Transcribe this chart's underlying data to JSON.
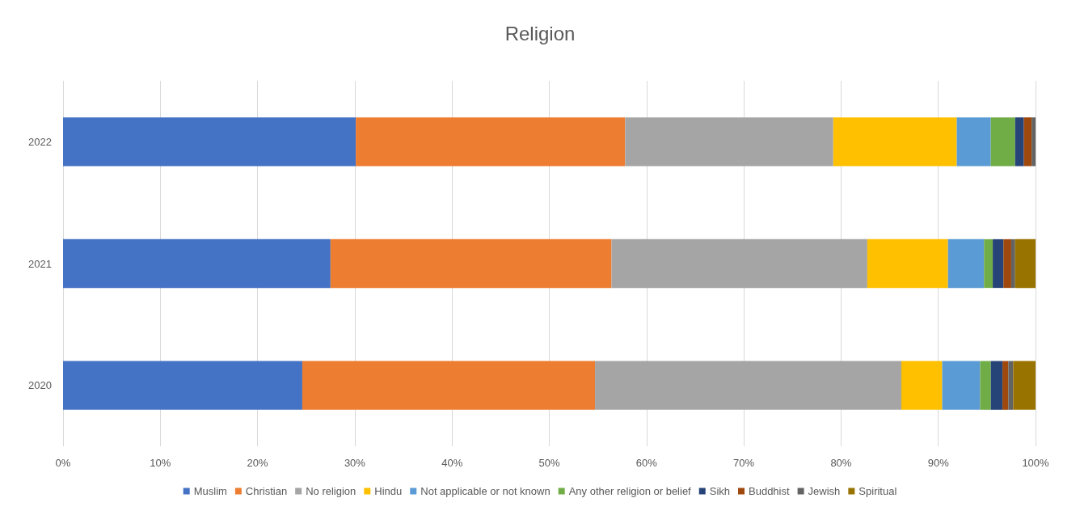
{
  "chart_data": {
    "type": "bar",
    "title": "Religion",
    "orientation": "horizontal",
    "stacked": true,
    "categories": [
      "2022",
      "2021",
      "2020"
    ],
    "series": [
      {
        "name": "Muslim",
        "color": "#4472c4",
        "values": [
          30.1,
          27.5,
          24.6
        ]
      },
      {
        "name": "Christian",
        "color": "#ed7d31",
        "values": [
          27.7,
          28.9,
          30.1
        ]
      },
      {
        "name": "No religion",
        "color": "#a5a5a5",
        "values": [
          21.4,
          26.3,
          31.5
        ]
      },
      {
        "name": "Hindu",
        "color": "#ffc000",
        "values": [
          12.7,
          8.3,
          4.2
        ]
      },
      {
        "name": "Not applicable or not known",
        "color": "#5b9bd5",
        "values": [
          3.5,
          3.7,
          3.9
        ]
      },
      {
        "name": "Any other religion or belief",
        "color": "#70ad47",
        "values": [
          2.5,
          0.9,
          1.1
        ]
      },
      {
        "name": "Sikh",
        "color": "#264478",
        "values": [
          0.9,
          1.1,
          1.2
        ]
      },
      {
        "name": "Buddhist",
        "color": "#9e480e",
        "values": [
          0.8,
          0.8,
          0.6
        ]
      },
      {
        "name": "Jewish",
        "color": "#636363",
        "values": [
          0.4,
          0.4,
          0.5
        ]
      },
      {
        "name": "Spiritual",
        "color": "#997300",
        "values": [
          0.0,
          2.1,
          2.3
        ]
      }
    ],
    "xlim": [
      0,
      100
    ],
    "xticks": [
      {
        "value": 0,
        "label": "0%"
      },
      {
        "value": 10,
        "label": "10%"
      },
      {
        "value": 20,
        "label": "20%"
      },
      {
        "value": 30,
        "label": "30%"
      },
      {
        "value": 40,
        "label": "40%"
      },
      {
        "value": 50,
        "label": "50%"
      },
      {
        "value": 60,
        "label": "60%"
      },
      {
        "value": 70,
        "label": "70%"
      },
      {
        "value": 80,
        "label": "80%"
      },
      {
        "value": 90,
        "label": "90%"
      },
      {
        "value": 100,
        "label": "100%"
      }
    ],
    "grid": "x",
    "legend": "bottom"
  }
}
